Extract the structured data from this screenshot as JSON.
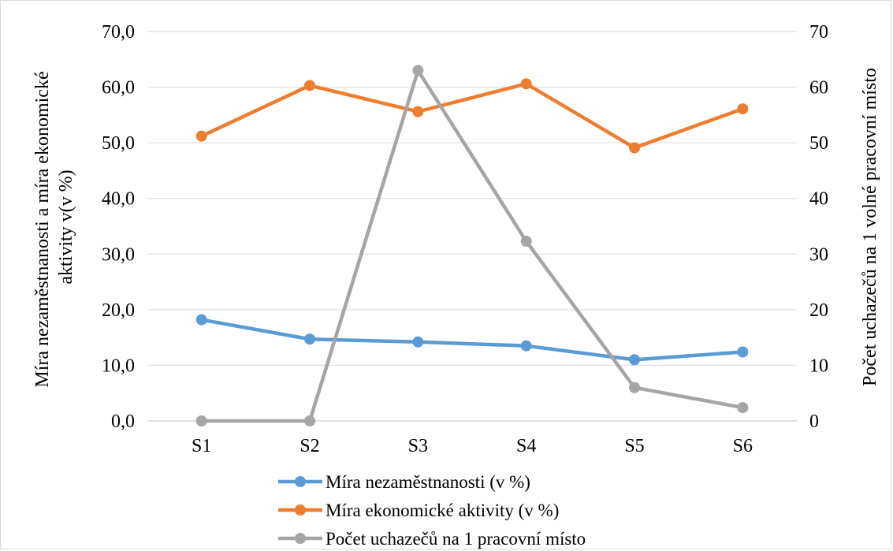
{
  "chart_data": {
    "type": "line",
    "categories": [
      "S1",
      "S2",
      "S3",
      "S4",
      "S5",
      "S6"
    ],
    "ylabel_left": "Míra nezaměstnanosti a míra ekonomické aktivity v(v %)",
    "ylabel_left_lines": [
      "Míra nezaměstnanosti a míra ekonomické",
      "aktivity v(v %)"
    ],
    "ylabel_right": "Počet uchazečů na 1 volné pracovní místo",
    "y_left_ticks": [
      "0,0",
      "10,0",
      "20,0",
      "30,0",
      "40,0",
      "50,0",
      "60,0",
      "70,0"
    ],
    "y_right_ticks": [
      "0",
      "10",
      "20",
      "30",
      "40",
      "50",
      "60",
      "70"
    ],
    "ylim_left": [
      0,
      70
    ],
    "ylim_right": [
      0,
      70
    ],
    "grid": true,
    "legend_position": "bottom",
    "series": [
      {
        "name": "Míra nezaměstnanosti (v %)",
        "axis": "left",
        "color": "#5b9bd5",
        "values": [
          18.2,
          14.7,
          14.2,
          13.5,
          11.0,
          12.4
        ]
      },
      {
        "name": "Míra ekonomické aktivity (v %)",
        "axis": "left",
        "color": "#ed7d31",
        "values": [
          51.2,
          60.3,
          55.6,
          60.6,
          49.1,
          56.1
        ]
      },
      {
        "name": "Počet uchazečů na 1 pracovní místo",
        "axis": "right",
        "color": "#a5a5a5",
        "values": [
          0,
          0,
          63.0,
          32.3,
          6.0,
          2.4
        ]
      }
    ]
  }
}
